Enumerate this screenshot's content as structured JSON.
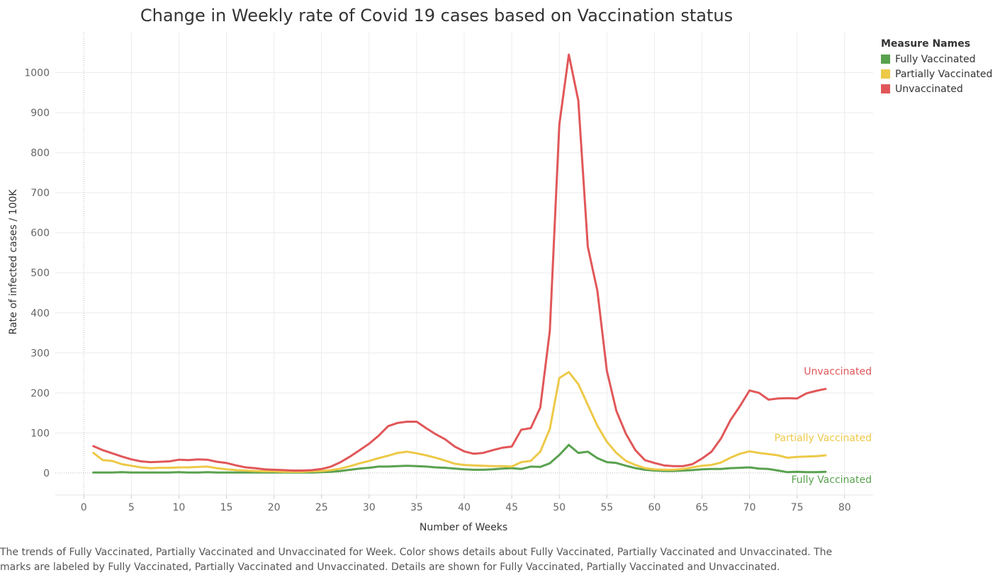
{
  "chart_data": {
    "type": "line",
    "title": "Change in Weekly rate of Covid 19 cases based on Vaccination status",
    "xlabel": "Number of Weeks",
    "ylabel": "Rate of infected cases / 100K",
    "xlim": [
      -3,
      83
    ],
    "ylim": [
      -55,
      1100
    ],
    "x_ticks": [
      0,
      5,
      10,
      15,
      20,
      25,
      30,
      35,
      40,
      45,
      50,
      55,
      60,
      65,
      70,
      75,
      80
    ],
    "y_ticks": [
      0,
      100,
      200,
      300,
      400,
      500,
      600,
      700,
      800,
      900,
      1000
    ],
    "grid": true,
    "legend_title": "Measure Names",
    "legend_position": "top-right",
    "series": [
      {
        "name": "Fully Vaccinated",
        "color": "#59a14f",
        "end_label": "Fully Vaccinated",
        "x": [
          1,
          2,
          3,
          4,
          5,
          6,
          7,
          8,
          9,
          10,
          11,
          12,
          13,
          14,
          15,
          16,
          17,
          18,
          19,
          20,
          21,
          22,
          23,
          24,
          25,
          26,
          27,
          28,
          29,
          30,
          31,
          32,
          33,
          34,
          35,
          36,
          37,
          38,
          39,
          40,
          41,
          42,
          43,
          44,
          45,
          46,
          47,
          48,
          49,
          50,
          51,
          52,
          53,
          54,
          55,
          56,
          57,
          58,
          59,
          60,
          61,
          62,
          63,
          64,
          65,
          66,
          67,
          68,
          69,
          70,
          71,
          72,
          73,
          74,
          75,
          76,
          77,
          78
        ],
        "values": [
          1,
          1,
          1,
          2,
          1,
          1,
          1,
          1,
          1,
          2,
          1,
          1,
          2,
          1,
          1,
          1,
          1,
          1,
          1,
          1,
          1,
          1,
          1,
          1,
          2,
          3,
          5,
          8,
          11,
          13,
          16,
          16,
          17,
          18,
          17,
          16,
          14,
          13,
          11,
          9,
          8,
          8,
          9,
          11,
          12,
          10,
          16,
          15,
          24,
          45,
          70,
          50,
          53,
          37,
          27,
          25,
          18,
          12,
          8,
          6,
          5,
          5,
          6,
          7,
          9,
          10,
          10,
          12,
          13,
          14,
          11,
          10,
          6,
          2,
          3,
          2,
          2,
          3
        ]
      },
      {
        "name": "Partially Vaccinated",
        "color": "#edc948",
        "end_label": "Partially Vaccinated",
        "x": [
          1,
          2,
          3,
          4,
          5,
          6,
          7,
          8,
          9,
          10,
          11,
          12,
          13,
          14,
          15,
          16,
          17,
          18,
          19,
          20,
          21,
          22,
          23,
          24,
          25,
          26,
          27,
          28,
          29,
          30,
          31,
          32,
          33,
          34,
          35,
          36,
          37,
          38,
          39,
          40,
          41,
          42,
          43,
          44,
          45,
          46,
          47,
          48,
          49,
          50,
          51,
          52,
          53,
          54,
          55,
          56,
          57,
          58,
          59,
          60,
          61,
          62,
          63,
          64,
          65,
          66,
          67,
          68,
          69,
          70,
          71,
          72,
          73,
          74,
          75,
          76,
          77,
          78
        ],
        "values": [
          50,
          32,
          30,
          22,
          18,
          14,
          12,
          13,
          13,
          14,
          14,
          15,
          16,
          12,
          9,
          7,
          6,
          5,
          4,
          4,
          3,
          3,
          3,
          4,
          5,
          7,
          11,
          17,
          24,
          30,
          37,
          43,
          50,
          53,
          49,
          44,
          38,
          31,
          23,
          20,
          19,
          18,
          17,
          17,
          16,
          27,
          30,
          53,
          110,
          237,
          252,
          222,
          170,
          118,
          78,
          50,
          30,
          20,
          12,
          9,
          8,
          8,
          10,
          14,
          18,
          20,
          26,
          38,
          48,
          54,
          50,
          47,
          44,
          38,
          40,
          41,
          42,
          44
        ]
      },
      {
        "name": "Unvaccinated",
        "color": "#e15759",
        "end_label": "Unvaccinated",
        "x": [
          1,
          2,
          3,
          4,
          5,
          6,
          7,
          8,
          9,
          10,
          11,
          12,
          13,
          14,
          15,
          16,
          17,
          18,
          19,
          20,
          21,
          22,
          23,
          24,
          25,
          26,
          27,
          28,
          29,
          30,
          31,
          32,
          33,
          34,
          35,
          36,
          37,
          38,
          39,
          40,
          41,
          42,
          43,
          44,
          45,
          46,
          47,
          48,
          49,
          50,
          51,
          52,
          53,
          54,
          55,
          56,
          57,
          58,
          59,
          60,
          61,
          62,
          63,
          64,
          65,
          66,
          67,
          68,
          69,
          70,
          71,
          72,
          73,
          74,
          75,
          76,
          77,
          78
        ],
        "values": [
          67,
          57,
          49,
          41,
          34,
          29,
          27,
          28,
          29,
          33,
          32,
          34,
          33,
          28,
          25,
          19,
          14,
          12,
          9,
          8,
          7,
          6,
          6,
          7,
          10,
          16,
          27,
          41,
          57,
          73,
          93,
          117,
          125,
          128,
          128,
          112,
          97,
          84,
          66,
          54,
          48,
          50,
          57,
          63,
          66,
          108,
          112,
          163,
          355,
          870,
          1045,
          930,
          565,
          455,
          255,
          155,
          98,
          57,
          32,
          25,
          19,
          17,
          17,
          22,
          36,
          53,
          86,
          132,
          167,
          206,
          200,
          183,
          186,
          187,
          186,
          199,
          205,
          210
        ]
      }
    ]
  },
  "caption": "The trends of Fully Vaccinated, Partially Vaccinated and Unvaccinated for Week.  Color shows details about Fully Vaccinated, Partially Vaccinated and Unvaccinated.  The marks are labeled by Fully Vaccinated, Partially Vaccinated and Unvaccinated.  Details are shown for Fully Vaccinated, Partially Vaccinated and Unvaccinated."
}
